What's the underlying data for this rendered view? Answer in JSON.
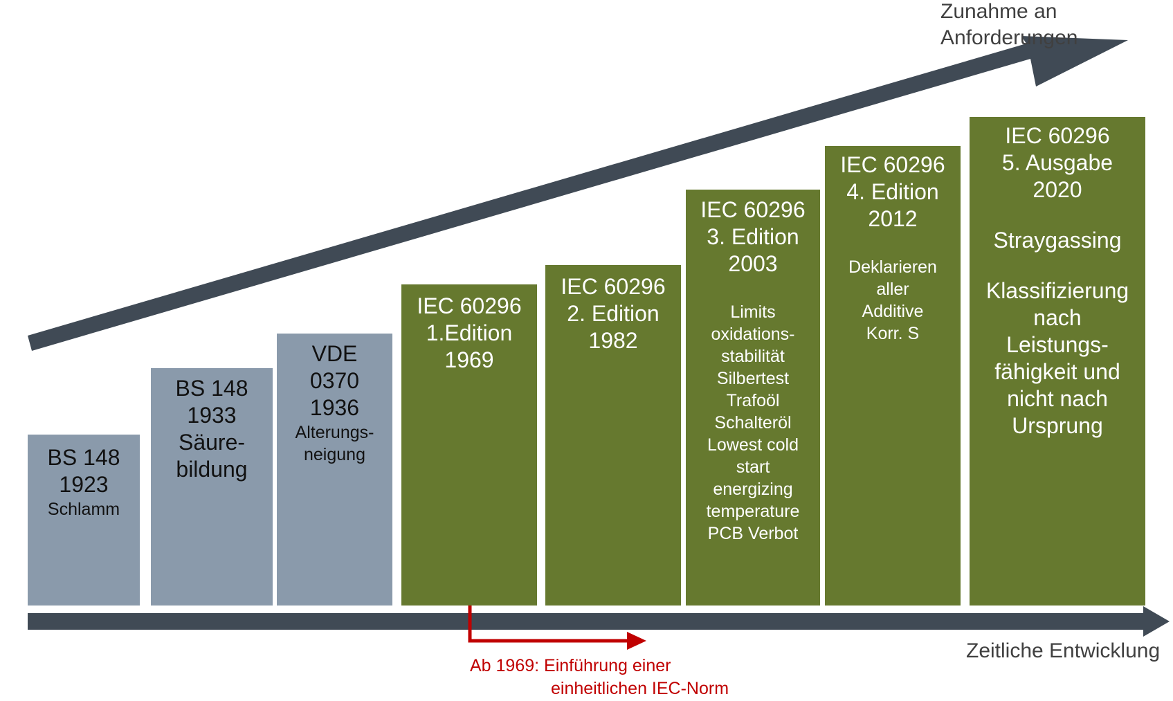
{
  "colors": {
    "gray_block": "#8a9aab",
    "green_block": "#66792f",
    "arrow": "#404a55",
    "highlight": "#c00000",
    "label_text": "#404040"
  },
  "labels": {
    "increase_top": "Zunahme an",
    "increase_bottom": "Anforderungen",
    "time_axis": "Zeitliche Entwicklung"
  },
  "note": {
    "line1": "Ab 1969: Einführung einer",
    "line2": "einheitlichen IEC-Norm"
  },
  "blocks": [
    {
      "id": "bs148-1923",
      "style": "gray",
      "lines": [
        {
          "text": "BS 148",
          "size": "big"
        },
        {
          "text": "1923",
          "size": "big"
        },
        {
          "text": "Schlamm",
          "size": "small"
        }
      ]
    },
    {
      "id": "bs148-1933",
      "style": "gray",
      "lines": [
        {
          "text": "BS 148",
          "size": "big"
        },
        {
          "text": "1933",
          "size": "big"
        },
        {
          "text": "Säure-",
          "size": "big"
        },
        {
          "text": "bildung",
          "size": "big"
        }
      ]
    },
    {
      "id": "vde0370-1936",
      "style": "gray",
      "lines": [
        {
          "text": "VDE",
          "size": "big"
        },
        {
          "text": "0370",
          "size": "big"
        },
        {
          "text": "1936",
          "size": "big"
        },
        {
          "text": "Alterungs-",
          "size": "small"
        },
        {
          "text": "neigung",
          "size": "small"
        }
      ]
    },
    {
      "id": "iec-1969",
      "style": "green",
      "lines": [
        {
          "text": "IEC 60296",
          "size": "big"
        },
        {
          "text": "1.Edition",
          "size": "big"
        },
        {
          "text": "1969",
          "size": "big"
        }
      ]
    },
    {
      "id": "iec-1982",
      "style": "green",
      "lines": [
        {
          "text": "IEC 60296",
          "size": "big"
        },
        {
          "text": "2. Edition",
          "size": "big"
        },
        {
          "text": "1982",
          "size": "big"
        }
      ]
    },
    {
      "id": "iec-2003",
      "style": "green",
      "lines": [
        {
          "text": "IEC 60296",
          "size": "big"
        },
        {
          "text": "3. Edition",
          "size": "big"
        },
        {
          "text": "2003",
          "size": "big"
        },
        {
          "text": "",
          "size": "gap"
        },
        {
          "text": "Limits",
          "size": "small"
        },
        {
          "text": "oxidations-",
          "size": "small"
        },
        {
          "text": "stabilität",
          "size": "small"
        },
        {
          "text": "Silbertest",
          "size": "small"
        },
        {
          "text": "Trafoöl",
          "size": "small"
        },
        {
          "text": "Schalteröl",
          "size": "small"
        },
        {
          "text": "Lowest cold",
          "size": "small"
        },
        {
          "text": "start",
          "size": "small"
        },
        {
          "text": "energizing",
          "size": "small"
        },
        {
          "text": "temperature",
          "size": "small"
        },
        {
          "text": "PCB Verbot",
          "size": "small"
        }
      ]
    },
    {
      "id": "iec-2012",
      "style": "green",
      "lines": [
        {
          "text": "IEC 60296",
          "size": "big"
        },
        {
          "text": "4. Edition",
          "size": "big"
        },
        {
          "text": "2012",
          "size": "big"
        },
        {
          "text": "",
          "size": "gap"
        },
        {
          "text": "Deklarieren",
          "size": "small"
        },
        {
          "text": "aller",
          "size": "small"
        },
        {
          "text": "Additive",
          "size": "small"
        },
        {
          "text": "Korr. S",
          "size": "small"
        }
      ]
    },
    {
      "id": "iec-2020",
      "style": "green",
      "lines": [
        {
          "text": "IEC 60296",
          "size": "big"
        },
        {
          "text": "5. Ausgabe",
          "size": "big"
        },
        {
          "text": "2020",
          "size": "big"
        },
        {
          "text": "",
          "size": "gap"
        },
        {
          "text": "Straygassing",
          "size": "big"
        },
        {
          "text": "",
          "size": "gap"
        },
        {
          "text": "Klassifizierung",
          "size": "big"
        },
        {
          "text": "nach",
          "size": "big"
        },
        {
          "text": "Leistungs-",
          "size": "big"
        },
        {
          "text": "fähigkeit und",
          "size": "big"
        },
        {
          "text": "nicht nach",
          "size": "big"
        },
        {
          "text": "Ursprung",
          "size": "big"
        }
      ]
    }
  ]
}
